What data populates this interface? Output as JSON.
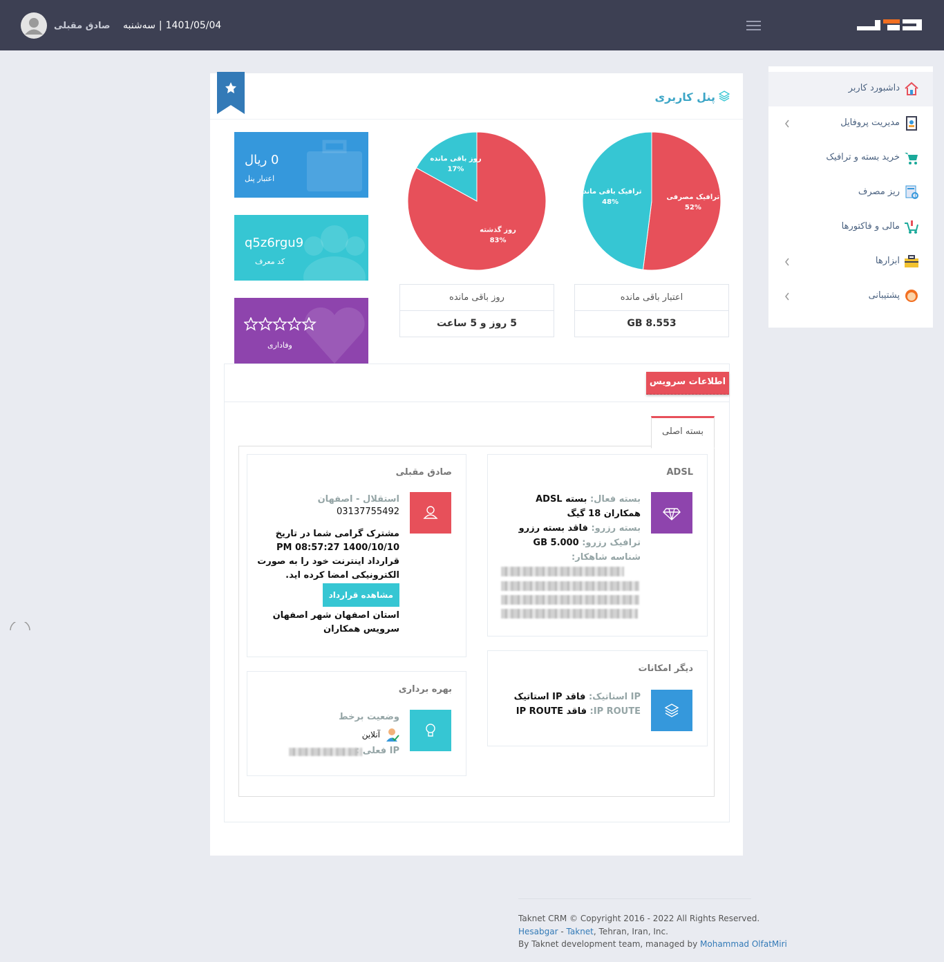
{
  "header": {
    "user_name": "صادق مقبلی",
    "weekday": "سه‌شنبه",
    "separator": "|",
    "date": "1401/05/04"
  },
  "sidebar": {
    "items": [
      {
        "label": "داشبورد کاربر"
      },
      {
        "label": "مدیریت پروفایل"
      },
      {
        "label": "خرید بسته و ترافیک"
      },
      {
        "label": "ریز مصرف"
      },
      {
        "label": "مالی و فاکتورها"
      },
      {
        "label": "ابزارها"
      },
      {
        "label": "پشتیبانی"
      }
    ]
  },
  "panel": {
    "title": "پنل کاربری",
    "cards": [
      {
        "value": "0 ریال",
        "label": "اعتبار پنل"
      },
      {
        "value": "q5z6rgu9",
        "label": "کد معرف"
      },
      {
        "label": "وفاداری"
      }
    ],
    "summaries": [
      {
        "header": "اعتبار باقی مانده",
        "value": "8.553 GB"
      },
      {
        "header": "روز باقی مانده",
        "value": "5 روز و 5 ساعت"
      }
    ]
  },
  "chart_data": [
    {
      "type": "pie",
      "categories": [
        "ترافیک مصرفی",
        "ترافیک باقی مانده"
      ],
      "values": [
        52,
        48
      ],
      "value_labels": [
        "52%",
        "48%"
      ],
      "colors": [
        "#e7505a",
        "#36c6d3"
      ]
    },
    {
      "type": "pie",
      "categories": [
        "روز گذشته",
        "روز باقی مانده"
      ],
      "values": [
        83,
        17
      ],
      "value_labels": [
        "83%",
        "17%"
      ],
      "colors": [
        "#e7505a",
        "#36c6d3"
      ]
    }
  ],
  "service": {
    "title": "اطلاعات سرویس",
    "tab": "بسته اصلی",
    "adsl": {
      "title": "ADSL",
      "rows": [
        {
          "label": "بسته فعال:",
          "value": "بسته ADSL همکاران 18 گیگ"
        },
        {
          "label": "بسته رزرو:",
          "value": "فاقد بسته رزرو"
        },
        {
          "label": "ترافیک رزرو:",
          "value": "5.000 GB"
        },
        {
          "label": "شناسه شاهکار:"
        }
      ]
    },
    "user": {
      "title": "صادق مقبلی",
      "address": "استقلال - اصفهان",
      "phone": "03137755492",
      "notice": "مشترک گرامی شما در تاریخ 1400/10/10 08:57:27 PM قرارداد اینترنت خود را به صورت الکترونیکی امضا کرده اید.",
      "button": "مشاهده قرارداد",
      "location": "استان اصفهان شهر اصفهان سرویس همکاران"
    },
    "features": {
      "title": "دیگر امکانات",
      "rows": [
        {
          "label": "IP استاتیک:",
          "value": "فاقد IP استاتیک"
        },
        {
          "label": "IP ROUTE:",
          "value": "فاقد IP ROUTE"
        }
      ]
    },
    "usage": {
      "title": "بهره برداری",
      "status_label": "وضعیت برخط",
      "status": "آنلاین",
      "ip_label": "IP فعلی :"
    }
  },
  "footer": {
    "copyright": "Taknet CRM © Copyright 2016 - 2022 All Rights Reserved.",
    "link1": "Hesabgar",
    "dash": "-",
    "link2": "Taknet",
    "location": ", Tehran, Iran, Inc.",
    "credit": "By Taknet development team, managed by",
    "author": "Mohammad OlfatMiri"
  }
}
